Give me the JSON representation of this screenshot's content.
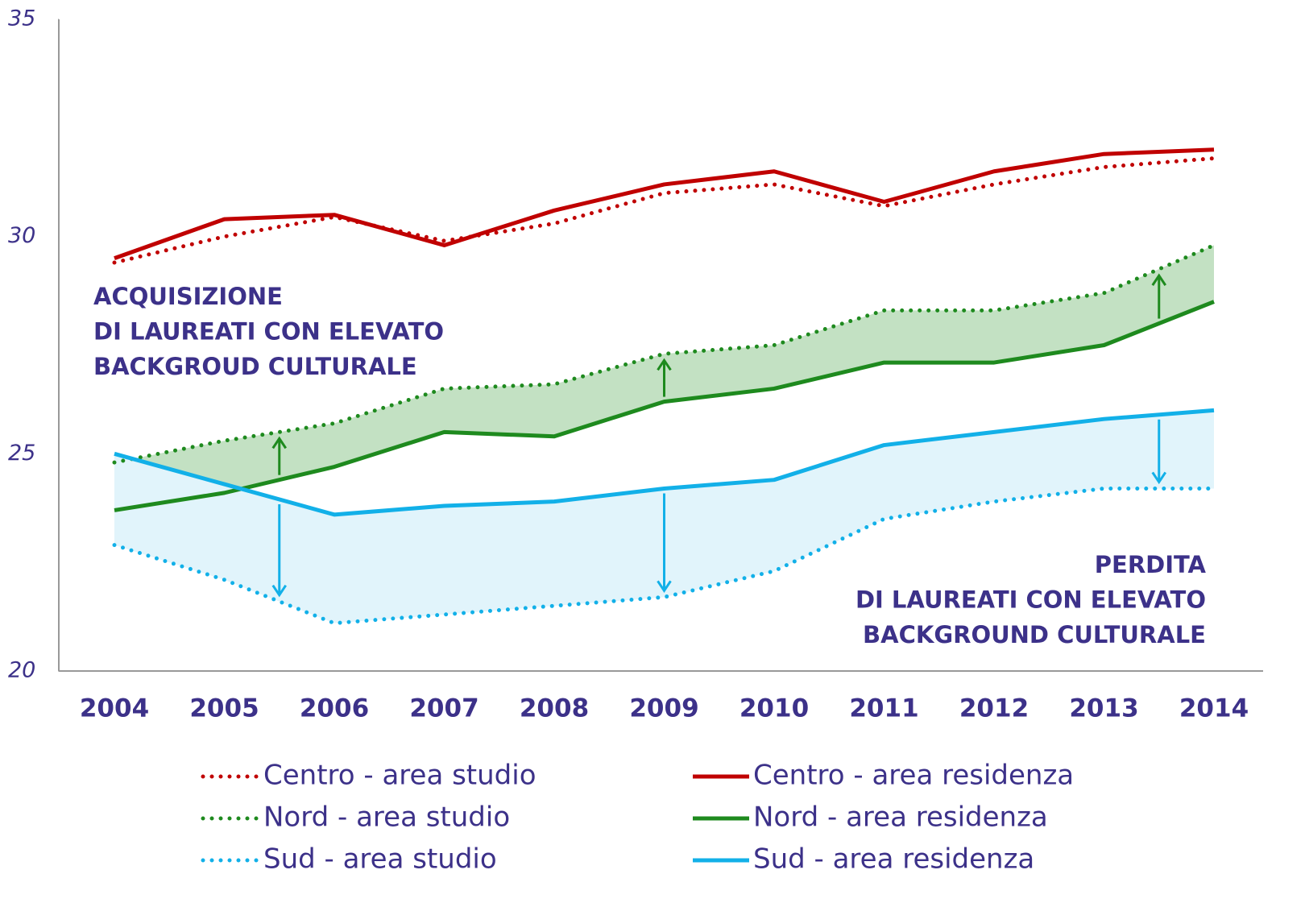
{
  "chart_data": {
    "type": "line",
    "categories": [
      "2004",
      "2005",
      "2006",
      "2007",
      "2008",
      "2009",
      "2010",
      "2011",
      "2012",
      "2013",
      "2014"
    ],
    "ylim": [
      20,
      35
    ],
    "yticks": [
      20,
      25,
      30,
      35
    ],
    "series": [
      {
        "name": "Centro - area studio",
        "color": "#c00000",
        "dash": "dotted",
        "values": [
          29.4,
          30.0,
          30.45,
          29.9,
          30.3,
          31.0,
          31.2,
          30.7,
          31.2,
          31.6,
          31.8
        ]
      },
      {
        "name": "Centro - area residenza",
        "color": "#c00000",
        "dash": "solid",
        "values": [
          29.5,
          30.4,
          30.5,
          29.8,
          30.6,
          31.2,
          31.5,
          30.8,
          31.5,
          31.9,
          32.0
        ]
      },
      {
        "name": "Nord - area studio",
        "color": "#1e8a1e",
        "dash": "dotted",
        "values": [
          24.8,
          25.3,
          25.7,
          26.5,
          26.6,
          27.3,
          27.5,
          28.3,
          28.3,
          28.7,
          29.8
        ]
      },
      {
        "name": "Nord - area residenza",
        "color": "#1e8a1e",
        "dash": "solid",
        "values": [
          23.7,
          24.1,
          24.7,
          25.5,
          25.4,
          26.2,
          26.5,
          27.1,
          27.1,
          27.5,
          28.5
        ]
      },
      {
        "name": "Sud - area studio",
        "color": "#12b0e8",
        "dash": "dotted",
        "values": [
          22.9,
          22.1,
          21.1,
          21.3,
          21.5,
          21.7,
          22.3,
          23.5,
          23.9,
          24.2,
          24.2
        ]
      },
      {
        "name": "Sud - area residenza",
        "color": "#12b0e8",
        "dash": "solid",
        "values": [
          25.0,
          24.3,
          23.6,
          23.8,
          23.9,
          24.2,
          24.4,
          25.2,
          25.5,
          25.8,
          26.0
        ]
      }
    ],
    "bands": [
      {
        "series": [
          2,
          3
        ],
        "color": "#c3e1c3"
      },
      {
        "series": [
          4,
          5
        ],
        "color": "#e1f4fb"
      }
    ],
    "annotations": [
      {
        "lines": [
          "ACQUISIZIONE",
          "DI LAUREATI CON ELEVATO",
          "BACKGROUD CULTURALE"
        ]
      },
      {
        "lines": [
          "PERDITA",
          "DI LAUREATI CON ELEVATO",
          "BACKGROUND CULTURALE"
        ]
      }
    ]
  }
}
